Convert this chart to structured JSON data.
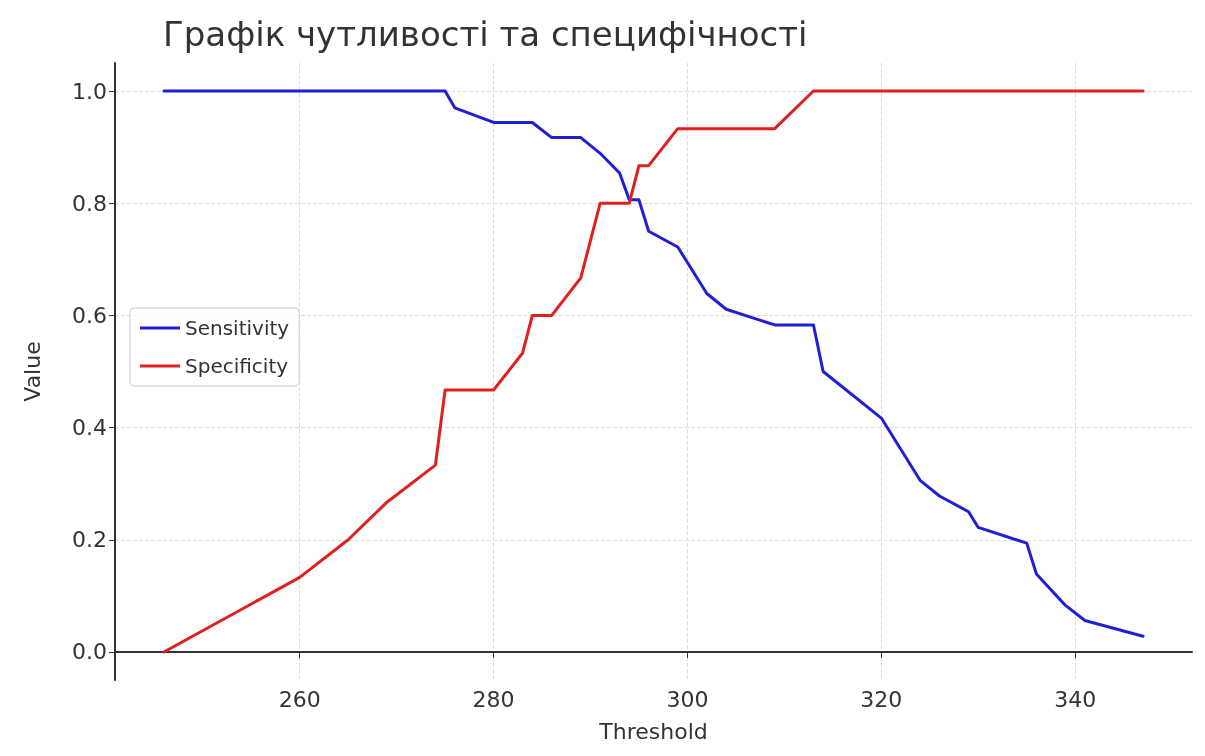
{
  "chart_data": {
    "type": "line",
    "title": "Графік чутливості та специфічності",
    "xlabel": "Threshold",
    "ylabel": "Value",
    "xlim": [
      240.95,
      352.05
    ],
    "xticks": [
      260,
      280,
      300,
      320,
      340
    ],
    "ylim": [
      -0.05,
      1.05
    ],
    "yticks": [
      {
        "value": 0,
        "label": "0.0"
      },
      {
        "value": 0.2,
        "label": "0.2"
      },
      {
        "value": 0.4,
        "label": "0.4"
      },
      {
        "value": 0.6,
        "label": "0.6"
      },
      {
        "value": 0.8,
        "label": "0.8"
      },
      {
        "value": 1,
        "label": "1.0"
      }
    ],
    "grid": true,
    "legend": "left",
    "marker": "none",
    "line_style": "solid",
    "series": [
      {
        "name": "Sensitivity",
        "color": "#1f1fd6",
        "x": [
          246,
          275,
          276,
          280,
          284,
          286,
          289,
          291,
          293,
          294,
          295,
          296,
          299,
          302,
          304,
          309,
          313,
          314,
          320,
          324,
          326,
          329,
          330,
          335,
          336,
          339,
          341,
          347
        ],
        "values": [
          1.0,
          1.0,
          0.97,
          0.944,
          0.944,
          0.917,
          0.917,
          0.889,
          0.854,
          0.806,
          0.806,
          0.75,
          0.722,
          0.639,
          0.611,
          0.583,
          0.583,
          0.5,
          0.417,
          0.306,
          0.278,
          0.25,
          0.222,
          0.194,
          0.139,
          0.083,
          0.056,
          0.028
        ]
      },
      {
        "name": "Specificity",
        "color": "#e01f1f",
        "x": [
          246,
          260,
          265,
          269,
          274,
          275,
          280,
          283,
          284,
          286,
          289,
          291,
          294,
          295,
          296,
          299,
          309,
          313,
          347
        ],
        "values": [
          0.0,
          0.133,
          0.2,
          0.267,
          0.333,
          0.467,
          0.467,
          0.533,
          0.6,
          0.6,
          0.667,
          0.8,
          0.8,
          0.867,
          0.867,
          0.933,
          0.933,
          1.0,
          1.0
        ]
      }
    ]
  }
}
